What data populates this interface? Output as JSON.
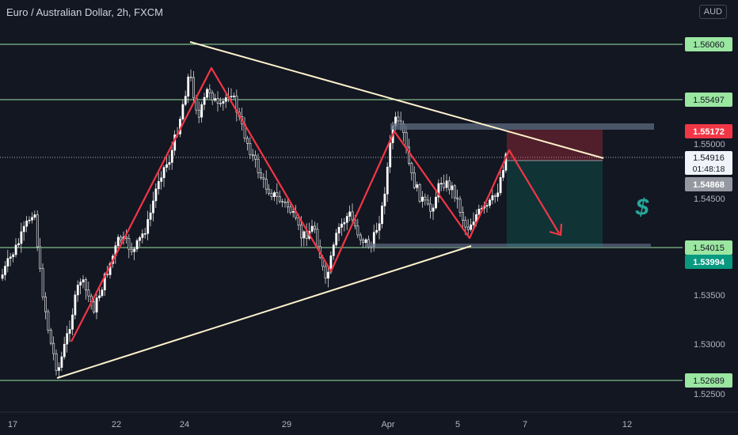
{
  "header": {
    "title": "Euro / Australian Dollar, 2h, FXCM",
    "currency": "AUD"
  },
  "axis": {
    "price_ticks": [
      "1.55000",
      "1.54500",
      "1.53500",
      "1.53000",
      "1.52500"
    ],
    "time_ticks": [
      "17",
      "22",
      "24",
      "29",
      "Apr",
      "5",
      "7",
      "12"
    ]
  },
  "levels": [
    {
      "label": "1.56060",
      "color": "#9be6a1"
    },
    {
      "label": "1.55497",
      "color": "#9be6a1"
    },
    {
      "label": "1.54015",
      "color": "#9be6a1"
    },
    {
      "label": "1.52689",
      "color": "#9be6a1"
    }
  ],
  "price_tags": {
    "stop": {
      "label": "1.55172",
      "color": "#f23645"
    },
    "current": {
      "label": "1.54916",
      "countdown": "01:48:18"
    },
    "entry": {
      "label": "1.54868",
      "color": "#9598a1"
    },
    "target": {
      "label": "1.53994",
      "color": "#089981"
    }
  },
  "annotations": {
    "dollar_symbol": "$"
  },
  "colors": {
    "background": "#131722",
    "candle": "#ffffff",
    "level_line": "#9be6a1",
    "trendline": "#fff2cc",
    "zigzag": "#f23645"
  }
}
